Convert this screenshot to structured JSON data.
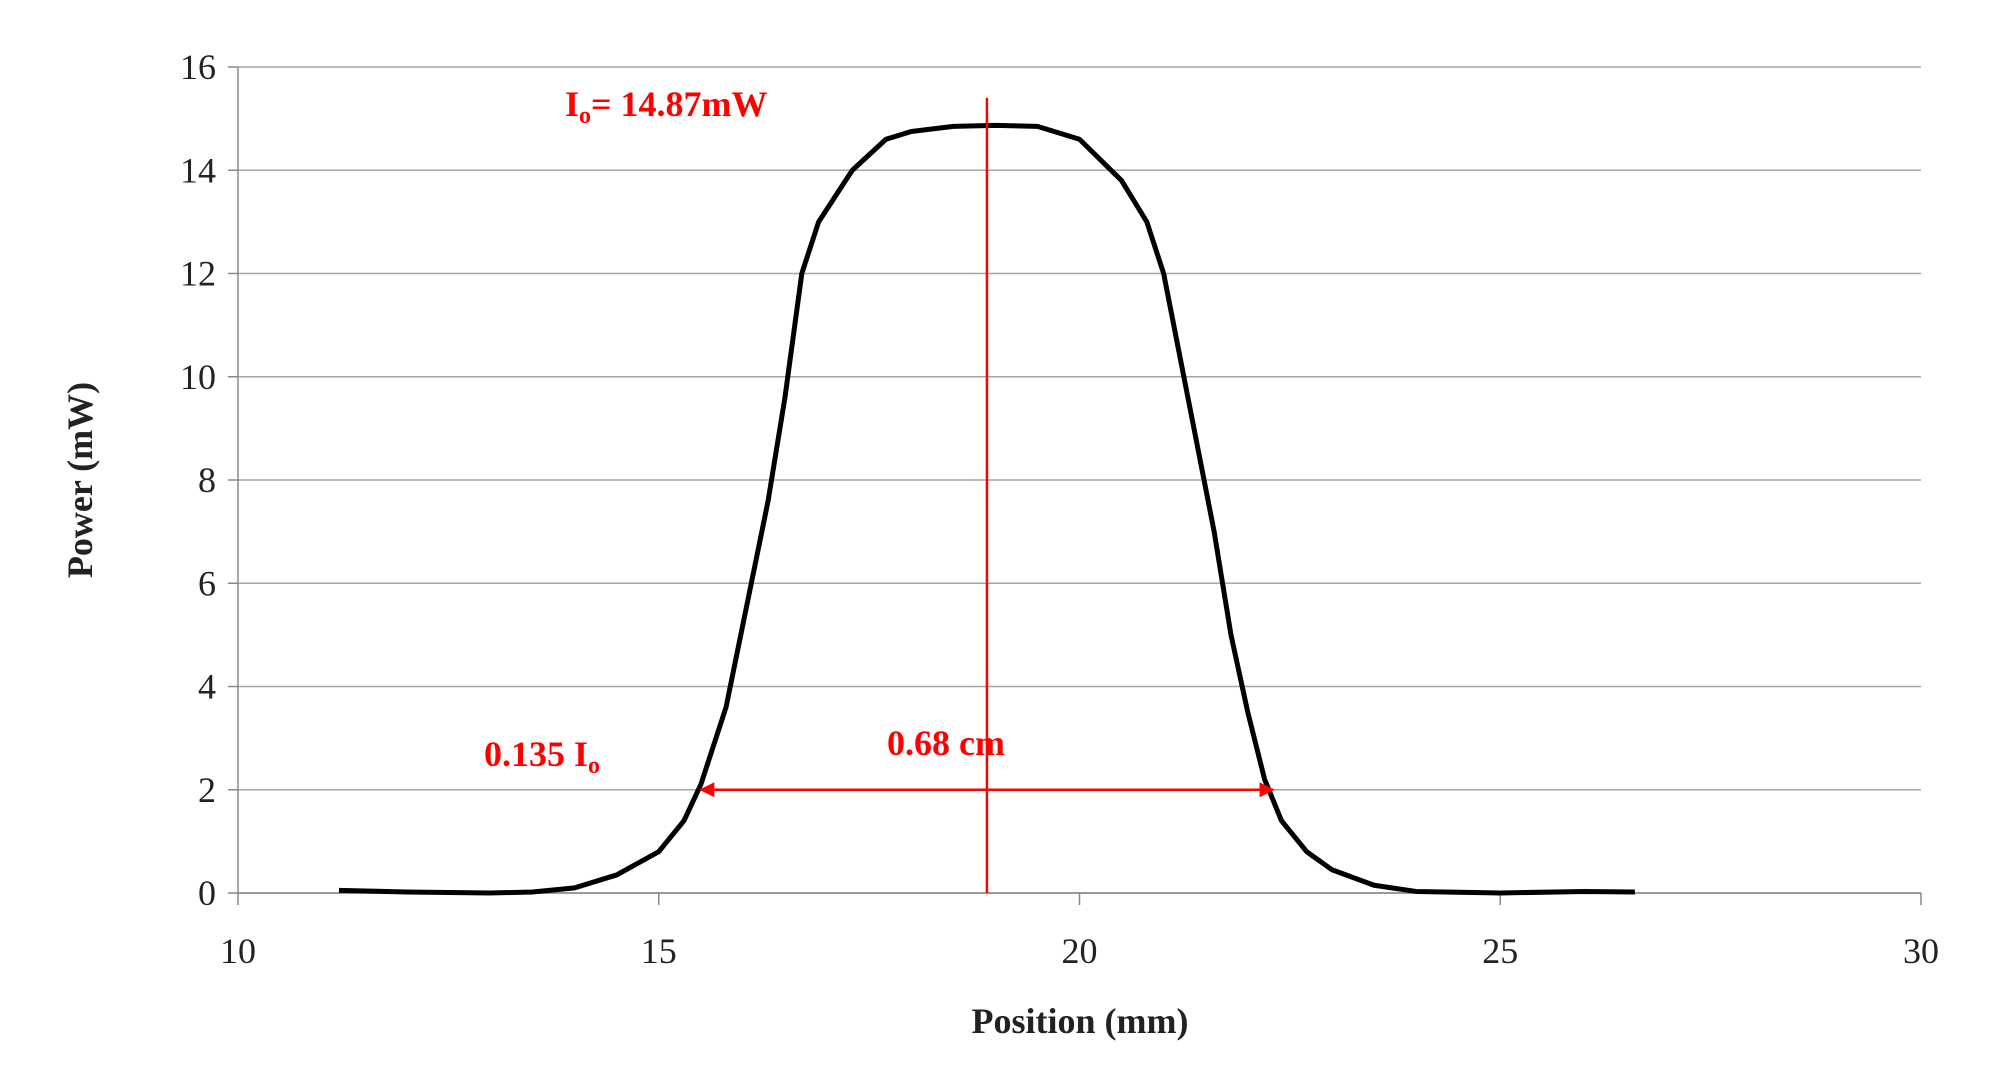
{
  "chart_data": {
    "type": "line",
    "x_label": "Position (mm)",
    "y_label": "Power (mW)",
    "xlim": [
      10,
      30
    ],
    "xticks": [
      10,
      15,
      20,
      25,
      30
    ],
    "ylim": [
      0,
      16
    ],
    "yticks": [
      0,
      2,
      4,
      6,
      8,
      10,
      12,
      14,
      16
    ],
    "grid": true,
    "series": [
      {
        "color": "#000000",
        "x": [
          11.2,
          12,
          13,
          13.5,
          14,
          14.5,
          15,
          15.3,
          15.5,
          15.8,
          16,
          16.3,
          16.5,
          16.7,
          16.9,
          17.3,
          17.7,
          18,
          18.5,
          19,
          19.5,
          20,
          20.5,
          20.8,
          21,
          21.3,
          21.6,
          21.8,
          22,
          22.2,
          22.4,
          22.7,
          23,
          23.5,
          24,
          25,
          26,
          26.6
        ],
        "values": [
          0.05,
          0.02,
          0.0,
          0.02,
          0.1,
          0.35,
          0.8,
          1.4,
          2.1,
          3.6,
          5.2,
          7.6,
          9.6,
          12.0,
          13.0,
          14.0,
          14.6,
          14.75,
          14.85,
          14.87,
          14.85,
          14.6,
          13.8,
          13.0,
          12.0,
          9.5,
          7.0,
          5.0,
          3.5,
          2.2,
          1.4,
          0.8,
          0.45,
          0.15,
          0.03,
          0.0,
          0.03,
          0.02
        ]
      }
    ],
    "annotation_color": "#ff0000",
    "peak_line": {
      "x": 18.9,
      "y": [
        0,
        15.4
      ]
    },
    "width_arrow": {
      "x": [
        15.5,
        22.3
      ],
      "y": 2
    },
    "annotations": [
      {
        "parts": [
          "I",
          "o",
          "= 14.87mW"
        ]
      },
      {
        "parts": [
          "0.135 I",
          "o"
        ]
      },
      {
        "parts": [
          "0.68 cm"
        ]
      }
    ]
  }
}
